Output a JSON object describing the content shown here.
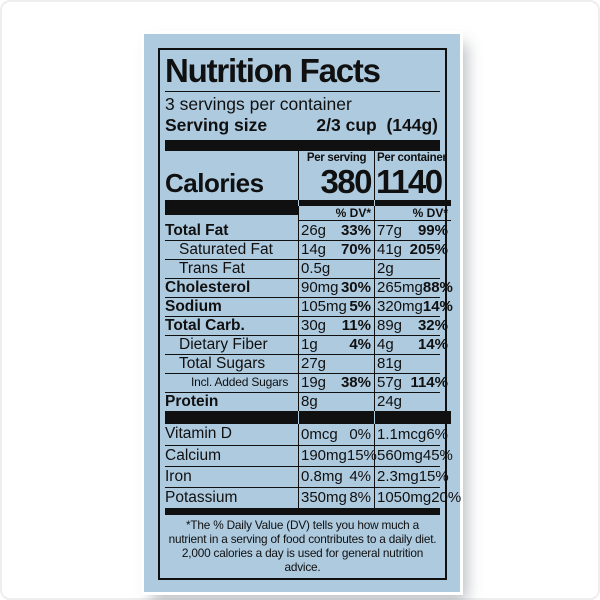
{
  "label": {
    "title": "Nutrition Facts",
    "servings_per_container": "3 servings per container",
    "serving_size_label": "Serving size",
    "serving_size_value": "2/3 cup  (144g)",
    "calories_label": "Calories",
    "col_serving_header": "Per serving",
    "col_container_header": "Per container",
    "calories_per_serving": "380",
    "calories_per_container": "1140",
    "dv_header": "% DV*",
    "rows": [
      {
        "name": "Total Fat",
        "sv_amt": "26g",
        "sv_dv": "33%",
        "ct_amt": "77g",
        "ct_dv": "99%"
      },
      {
        "name": "Saturated Fat",
        "sv_amt": "14g",
        "sv_dv": "70%",
        "ct_amt": "41g",
        "ct_dv": "205%"
      },
      {
        "name": "Trans Fat",
        "sv_amt": "0.5g",
        "sv_dv": "",
        "ct_amt": "2g",
        "ct_dv": ""
      },
      {
        "name": "Cholesterol",
        "sv_amt": "90mg",
        "sv_dv": "30%",
        "ct_amt": "265mg",
        "ct_dv": "88%"
      },
      {
        "name": "Sodium",
        "sv_amt": "105mg",
        "sv_dv": "5%",
        "ct_amt": "320mg",
        "ct_dv": "14%"
      },
      {
        "name": "Total Carb.",
        "sv_amt": "30g",
        "sv_dv": "11%",
        "ct_amt": "89g",
        "ct_dv": "32%"
      },
      {
        "name": "Dietary Fiber",
        "sv_amt": "1g",
        "sv_dv": "4%",
        "ct_amt": "4g",
        "ct_dv": "14%"
      },
      {
        "name": "Total Sugars",
        "sv_amt": "27g",
        "sv_dv": "",
        "ct_amt": "81g",
        "ct_dv": ""
      },
      {
        "name": "Incl. Added Sugars",
        "sv_amt": "19g",
        "sv_dv": "38%",
        "ct_amt": "57g",
        "ct_dv": "114%"
      },
      {
        "name": "Protein",
        "sv_amt": "8g",
        "sv_dv": "",
        "ct_amt": "24g",
        "ct_dv": ""
      }
    ],
    "micronutrients": [
      {
        "name": "Vitamin D",
        "sv_amt": "0mcg",
        "sv_dv": "0%",
        "ct_amt": "1.1mcg",
        "ct_dv": "6%"
      },
      {
        "name": "Calcium",
        "sv_amt": "190mg",
        "sv_dv": "15%",
        "ct_amt": "560mg",
        "ct_dv": "45%"
      },
      {
        "name": "Iron",
        "sv_amt": "0.8mg",
        "sv_dv": "4%",
        "ct_amt": "2.3mg",
        "ct_dv": "15%"
      },
      {
        "name": "Potassium",
        "sv_amt": "350mg",
        "sv_dv": "8%",
        "ct_amt": "1050mg",
        "ct_dv": "20%"
      }
    ],
    "footnote": "*The % Daily Value (DV) tells you how much a nutrient in a serving of food contributes to a daily diet. 2,000 calories a day is used for general nutrition advice.",
    "colors": {
      "card_bg": "#aecadf",
      "ink": "#101010",
      "page_bg": "#ffffff"
    }
  }
}
